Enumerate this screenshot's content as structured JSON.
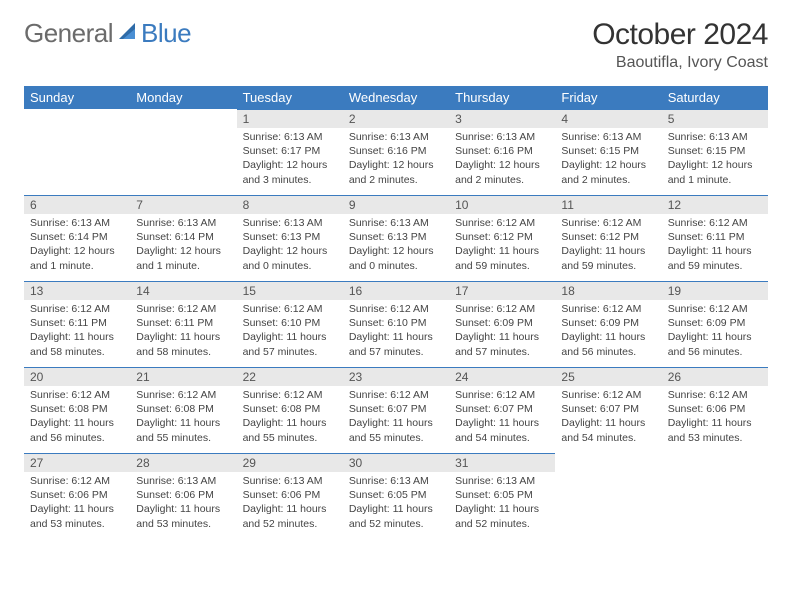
{
  "logo": {
    "general": "General",
    "blue": "Blue"
  },
  "title": "October 2024",
  "location": "Baoutifla, Ivory Coast",
  "colors": {
    "header_bg": "#3b7bbf",
    "daynum_bg": "#e8e8e8",
    "daynum_border": "#3b7bbf",
    "page_bg": "#ffffff",
    "text": "#333333"
  },
  "weekdays": [
    "Sunday",
    "Monday",
    "Tuesday",
    "Wednesday",
    "Thursday",
    "Friday",
    "Saturday"
  ],
  "weeks": [
    [
      null,
      null,
      {
        "n": "1",
        "sr": "Sunrise: 6:13 AM",
        "ss": "Sunset: 6:17 PM",
        "dl": "Daylight: 12 hours and 3 minutes."
      },
      {
        "n": "2",
        "sr": "Sunrise: 6:13 AM",
        "ss": "Sunset: 6:16 PM",
        "dl": "Daylight: 12 hours and 2 minutes."
      },
      {
        "n": "3",
        "sr": "Sunrise: 6:13 AM",
        "ss": "Sunset: 6:16 PM",
        "dl": "Daylight: 12 hours and 2 minutes."
      },
      {
        "n": "4",
        "sr": "Sunrise: 6:13 AM",
        "ss": "Sunset: 6:15 PM",
        "dl": "Daylight: 12 hours and 2 minutes."
      },
      {
        "n": "5",
        "sr": "Sunrise: 6:13 AM",
        "ss": "Sunset: 6:15 PM",
        "dl": "Daylight: 12 hours and 1 minute."
      }
    ],
    [
      {
        "n": "6",
        "sr": "Sunrise: 6:13 AM",
        "ss": "Sunset: 6:14 PM",
        "dl": "Daylight: 12 hours and 1 minute."
      },
      {
        "n": "7",
        "sr": "Sunrise: 6:13 AM",
        "ss": "Sunset: 6:14 PM",
        "dl": "Daylight: 12 hours and 1 minute."
      },
      {
        "n": "8",
        "sr": "Sunrise: 6:13 AM",
        "ss": "Sunset: 6:13 PM",
        "dl": "Daylight: 12 hours and 0 minutes."
      },
      {
        "n": "9",
        "sr": "Sunrise: 6:13 AM",
        "ss": "Sunset: 6:13 PM",
        "dl": "Daylight: 12 hours and 0 minutes."
      },
      {
        "n": "10",
        "sr": "Sunrise: 6:12 AM",
        "ss": "Sunset: 6:12 PM",
        "dl": "Daylight: 11 hours and 59 minutes."
      },
      {
        "n": "11",
        "sr": "Sunrise: 6:12 AM",
        "ss": "Sunset: 6:12 PM",
        "dl": "Daylight: 11 hours and 59 minutes."
      },
      {
        "n": "12",
        "sr": "Sunrise: 6:12 AM",
        "ss": "Sunset: 6:11 PM",
        "dl": "Daylight: 11 hours and 59 minutes."
      }
    ],
    [
      {
        "n": "13",
        "sr": "Sunrise: 6:12 AM",
        "ss": "Sunset: 6:11 PM",
        "dl": "Daylight: 11 hours and 58 minutes."
      },
      {
        "n": "14",
        "sr": "Sunrise: 6:12 AM",
        "ss": "Sunset: 6:11 PM",
        "dl": "Daylight: 11 hours and 58 minutes."
      },
      {
        "n": "15",
        "sr": "Sunrise: 6:12 AM",
        "ss": "Sunset: 6:10 PM",
        "dl": "Daylight: 11 hours and 57 minutes."
      },
      {
        "n": "16",
        "sr": "Sunrise: 6:12 AM",
        "ss": "Sunset: 6:10 PM",
        "dl": "Daylight: 11 hours and 57 minutes."
      },
      {
        "n": "17",
        "sr": "Sunrise: 6:12 AM",
        "ss": "Sunset: 6:09 PM",
        "dl": "Daylight: 11 hours and 57 minutes."
      },
      {
        "n": "18",
        "sr": "Sunrise: 6:12 AM",
        "ss": "Sunset: 6:09 PM",
        "dl": "Daylight: 11 hours and 56 minutes."
      },
      {
        "n": "19",
        "sr": "Sunrise: 6:12 AM",
        "ss": "Sunset: 6:09 PM",
        "dl": "Daylight: 11 hours and 56 minutes."
      }
    ],
    [
      {
        "n": "20",
        "sr": "Sunrise: 6:12 AM",
        "ss": "Sunset: 6:08 PM",
        "dl": "Daylight: 11 hours and 56 minutes."
      },
      {
        "n": "21",
        "sr": "Sunrise: 6:12 AM",
        "ss": "Sunset: 6:08 PM",
        "dl": "Daylight: 11 hours and 55 minutes."
      },
      {
        "n": "22",
        "sr": "Sunrise: 6:12 AM",
        "ss": "Sunset: 6:08 PM",
        "dl": "Daylight: 11 hours and 55 minutes."
      },
      {
        "n": "23",
        "sr": "Sunrise: 6:12 AM",
        "ss": "Sunset: 6:07 PM",
        "dl": "Daylight: 11 hours and 55 minutes."
      },
      {
        "n": "24",
        "sr": "Sunrise: 6:12 AM",
        "ss": "Sunset: 6:07 PM",
        "dl": "Daylight: 11 hours and 54 minutes."
      },
      {
        "n": "25",
        "sr": "Sunrise: 6:12 AM",
        "ss": "Sunset: 6:07 PM",
        "dl": "Daylight: 11 hours and 54 minutes."
      },
      {
        "n": "26",
        "sr": "Sunrise: 6:12 AM",
        "ss": "Sunset: 6:06 PM",
        "dl": "Daylight: 11 hours and 53 minutes."
      }
    ],
    [
      {
        "n": "27",
        "sr": "Sunrise: 6:12 AM",
        "ss": "Sunset: 6:06 PM",
        "dl": "Daylight: 11 hours and 53 minutes."
      },
      {
        "n": "28",
        "sr": "Sunrise: 6:13 AM",
        "ss": "Sunset: 6:06 PM",
        "dl": "Daylight: 11 hours and 53 minutes."
      },
      {
        "n": "29",
        "sr": "Sunrise: 6:13 AM",
        "ss": "Sunset: 6:06 PM",
        "dl": "Daylight: 11 hours and 52 minutes."
      },
      {
        "n": "30",
        "sr": "Sunrise: 6:13 AM",
        "ss": "Sunset: 6:05 PM",
        "dl": "Daylight: 11 hours and 52 minutes."
      },
      {
        "n": "31",
        "sr": "Sunrise: 6:13 AM",
        "ss": "Sunset: 6:05 PM",
        "dl": "Daylight: 11 hours and 52 minutes."
      },
      null,
      null
    ]
  ]
}
